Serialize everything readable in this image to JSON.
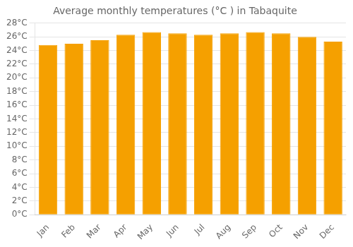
{
  "chart_data": {
    "type": "bar",
    "title": "Average monthly temperatures (°C ) in Tabaquite",
    "categories": [
      "Jan",
      "Feb",
      "Mar",
      "Apr",
      "May",
      "Jun",
      "Jul",
      "Aug",
      "Sep",
      "Oct",
      "Nov",
      "Dec"
    ],
    "values": [
      24.8,
      25.0,
      25.5,
      26.3,
      26.7,
      26.5,
      26.3,
      26.5,
      26.7,
      26.5,
      26.0,
      25.3
    ],
    "color": "#F5A000",
    "ylim": [
      0,
      28
    ],
    "yticks": [
      {
        "value": 0,
        "label": "0°C"
      },
      {
        "value": 2,
        "label": "2°C"
      },
      {
        "value": 4,
        "label": "4°C"
      },
      {
        "value": 6,
        "label": "6°C"
      },
      {
        "value": 8,
        "label": "8°C"
      },
      {
        "value": 10,
        "label": "10°C"
      },
      {
        "value": 12,
        "label": "12°C"
      },
      {
        "value": 14,
        "label": "14°C"
      },
      {
        "value": 16,
        "label": "16°C"
      },
      {
        "value": 18,
        "label": "18°C"
      },
      {
        "value": 20,
        "label": "20°C"
      },
      {
        "value": 22,
        "label": "22°C"
      },
      {
        "value": 24,
        "label": "24°C"
      },
      {
        "value": 26,
        "label": "26°C"
      },
      {
        "value": 28,
        "label": "28°C"
      }
    ],
    "grid": true
  }
}
